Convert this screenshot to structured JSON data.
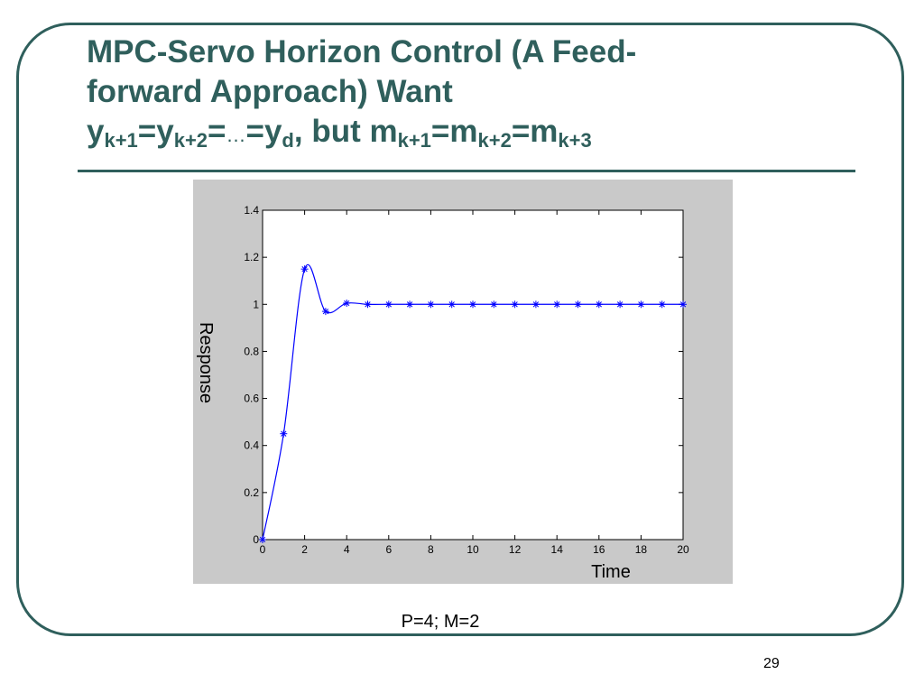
{
  "slide": {
    "title_line1": "MPC-Servo Horizon Control (A Feed-",
    "title_line2": "forward Approach) Want",
    "eq": {
      "y1": "y",
      "s1": "k+1",
      "eq1": "=",
      "y2": "y",
      "s2": "k+2",
      "eq2": "=",
      "ellipsis": "…",
      "eq3": "=",
      "y3": "y",
      "s3": "d",
      "mid": ", but ",
      "m1": "m",
      "s4": "k+1",
      "eq4": "=",
      "m2": "m",
      "s5": "k+2",
      "eq5": "=",
      "m3": "m",
      "s6": "k+3"
    },
    "caption": "P=4; M=2",
    "page_number": "29"
  },
  "chart_data": {
    "type": "line",
    "xlabel": "Time",
    "ylabel": "Response",
    "xlim": [
      0,
      20
    ],
    "ylim": [
      0,
      1.4
    ],
    "xticks": [
      "0",
      "2",
      "4",
      "6",
      "8",
      "10",
      "12",
      "14",
      "16",
      "18",
      "20"
    ],
    "yticks": [
      "0",
      "0.2",
      "0.4",
      "0.6",
      "0.8",
      "1",
      "1.2",
      "1.4"
    ],
    "grid": false,
    "line_color": "#0000ff",
    "series": [
      {
        "marker": "asterisk",
        "x": [
          0,
          1,
          2,
          3,
          4,
          5,
          6,
          7,
          8,
          9,
          10,
          11,
          12,
          13,
          14,
          15,
          16,
          17,
          18,
          19,
          20
        ],
        "y": [
          0,
          0.45,
          1.15,
          0.97,
          1.005,
          1,
          1,
          1,
          1,
          1,
          1,
          1,
          1,
          1,
          1,
          1,
          1,
          1,
          1,
          1,
          1
        ]
      }
    ]
  }
}
